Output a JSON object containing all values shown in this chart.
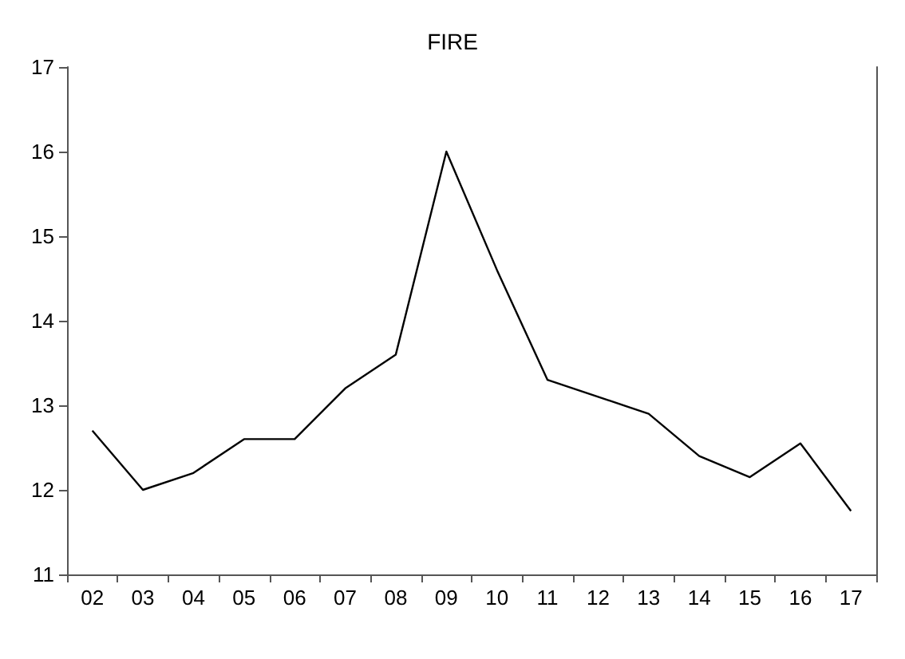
{
  "chart_data": {
    "type": "line",
    "title": "FIRE",
    "categories": [
      "02",
      "03",
      "04",
      "05",
      "06",
      "07",
      "08",
      "09",
      "10",
      "11",
      "12",
      "13",
      "14",
      "15",
      "16",
      "17"
    ],
    "series": [
      {
        "color": "#000000",
        "values": [
          12.7,
          12.0,
          12.2,
          12.6,
          12.6,
          13.2,
          13.6,
          16.0,
          14.6,
          13.3,
          13.1,
          12.9,
          12.4,
          12.15,
          12.55,
          11.75
        ]
      }
    ],
    "ylim": [
      11,
      17
    ],
    "yticks": [
      11,
      12,
      13,
      14,
      15,
      16,
      17
    ],
    "grid": false,
    "marker": "none",
    "line_style": "solid"
  }
}
